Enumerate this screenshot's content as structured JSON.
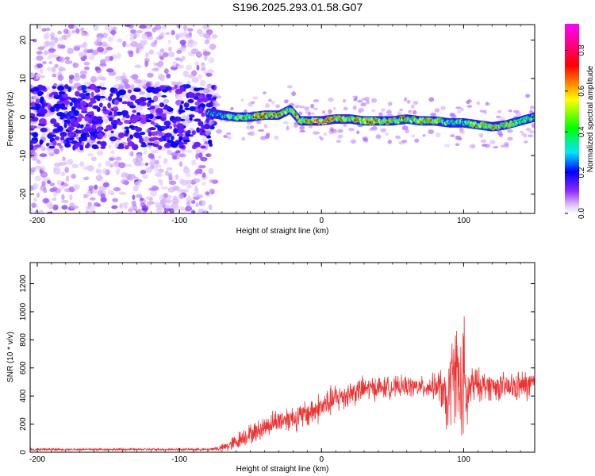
{
  "title": "S196.2025.293.01.58.G07",
  "chart_data": [
    {
      "type": "heatmap",
      "xlabel": "Height of straight line (km)",
      "ylabel": "Frequency (Hz)",
      "xlim": [
        -205,
        150
      ],
      "ylim": [
        -25,
        24
      ],
      "xticks": [
        -200,
        -100,
        0,
        100
      ],
      "xtick_labels": [
        "-200",
        "-100",
        "0",
        "100"
      ],
      "yticks": [
        -20,
        -10,
        0,
        10,
        20
      ],
      "ytick_labels": [
        "-20",
        "-10",
        "0",
        "10",
        "20"
      ],
      "colorbar": {
        "label": "Normalized spectral amplitude",
        "range": [
          0,
          0.93
        ],
        "ticks": [
          0.0,
          0.2,
          0.4,
          0.6,
          0.8
        ],
        "tick_labels": [
          "0.0",
          "0.2",
          "0.4",
          "0.6",
          "0.8"
        ],
        "colors": [
          "#ffffff",
          "#e0c8ff",
          "#8000ff",
          "#0000ff",
          "#00ffff",
          "#00ff00",
          "#ffff00",
          "#ff0000",
          "#ff00ff"
        ]
      },
      "ridge_trace": {
        "x": [
          -78,
          -70,
          -60,
          -50,
          -40,
          -30,
          -22,
          -15,
          -5,
          0,
          10,
          20,
          30,
          40,
          50,
          60,
          70,
          80,
          90,
          100,
          110,
          120,
          130,
          140,
          150
        ],
        "y": [
          1.0,
          0.5,
          0.0,
          0.0,
          0.5,
          0.5,
          2.0,
          -1.0,
          -1.0,
          -1.0,
          -0.5,
          -0.5,
          -1.0,
          -1.0,
          -1.0,
          -0.5,
          -1.0,
          -1.0,
          -1.5,
          -1.5,
          -2.0,
          -2.5,
          -2.0,
          -1.0,
          0.0
        ],
        "amplitude": [
          0.35,
          0.45,
          0.6,
          0.7,
          0.7,
          0.75,
          0.6,
          0.7,
          0.85,
          0.85,
          0.8,
          0.75,
          0.7,
          0.75,
          0.7,
          0.7,
          0.65,
          0.7,
          0.5,
          0.55,
          0.7,
          0.75,
          0.65,
          0.55,
          0.45
        ]
      }
    },
    {
      "type": "line",
      "xlabel": "Height of straight line (km)",
      "ylabel": "SNR (10 * v/v)",
      "xlim": [
        -205,
        150
      ],
      "ylim": [
        0,
        1350
      ],
      "xticks": [
        -200,
        -100,
        0,
        100
      ],
      "xtick_labels": [
        "-200",
        "-100",
        "0",
        "100"
      ],
      "yticks": [
        0,
        200,
        400,
        600,
        800,
        1000,
        1200
      ],
      "ytick_labels": [
        "0",
        "200",
        "400",
        "600",
        "800",
        "1000",
        "1200"
      ],
      "color": "#ee3333",
      "envelope": {
        "x": [
          -205,
          -150,
          -100,
          -80,
          -70,
          -62,
          -55,
          -45,
          -35,
          -25,
          -15,
          -5,
          0,
          10,
          20,
          30,
          40,
          50,
          60,
          70,
          80,
          85,
          88,
          92,
          95,
          98,
          100,
          102,
          105,
          110,
          120,
          130,
          140,
          150
        ],
        "mean": [
          20,
          20,
          20,
          20,
          30,
          60,
          110,
          150,
          210,
          240,
          250,
          300,
          320,
          380,
          420,
          450,
          460,
          460,
          470,
          460,
          470,
          450,
          300,
          550,
          600,
          400,
          500,
          350,
          470,
          480,
          470,
          460,
          470,
          480
        ],
        "spread": [
          10,
          10,
          10,
          10,
          30,
          70,
          80,
          90,
          100,
          110,
          120,
          130,
          130,
          130,
          120,
          110,
          100,
          90,
          90,
          90,
          110,
          200,
          260,
          380,
          420,
          460,
          650,
          300,
          200,
          140,
          120,
          120,
          130,
          140
        ]
      }
    }
  ]
}
